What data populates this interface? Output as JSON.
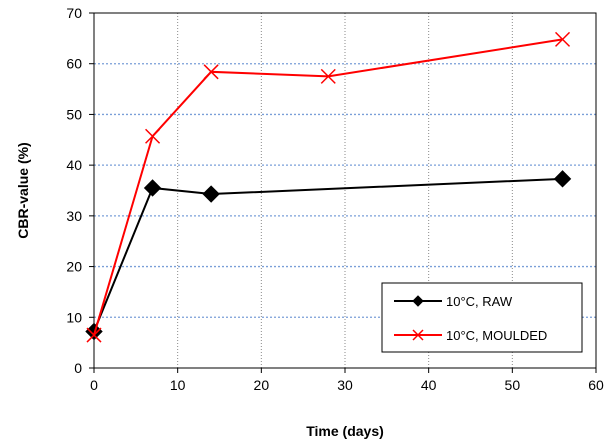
{
  "chart_data": {
    "type": "line",
    "xlabel": "Time (days)",
    "ylabel": "CBR-value (%)",
    "xlim": [
      0,
      60
    ],
    "ylim": [
      0,
      70
    ],
    "xticks": [
      0,
      10,
      20,
      30,
      40,
      50,
      60
    ],
    "yticks": [
      0,
      10,
      20,
      30,
      40,
      50,
      60,
      70
    ],
    "grid": "dotted, both axes",
    "legend_position": "bottom-right",
    "series": [
      {
        "name": "10°C, RAW",
        "color": "#000000",
        "marker": "diamond",
        "x": [
          0,
          7,
          14,
          56
        ],
        "y": [
          7.2,
          35.5,
          34.3,
          37.3
        ]
      },
      {
        "name": "10°C, MOULDED",
        "color": "#ff0000",
        "marker": "x",
        "x": [
          0,
          7,
          14,
          28,
          56
        ],
        "y": [
          6.5,
          45.7,
          58.4,
          57.5,
          64.8
        ]
      }
    ]
  }
}
